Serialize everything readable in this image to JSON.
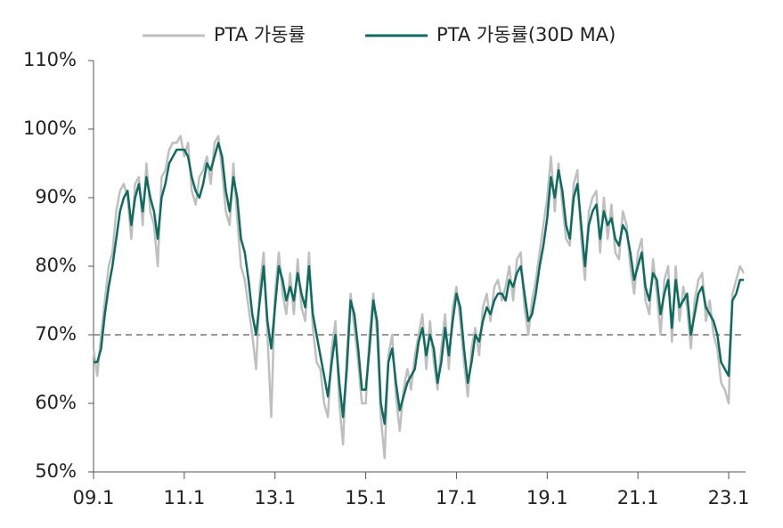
{
  "chart_data": {
    "type": "line",
    "categories": [
      "09.1",
      null,
      null,
      null,
      null,
      null,
      null,
      null,
      null,
      null,
      null,
      null,
      null,
      null,
      null,
      null,
      null,
      null,
      null,
      null,
      null,
      null,
      null,
      null,
      "11.1",
      null,
      null,
      null,
      null,
      null,
      null,
      null,
      null,
      null,
      null,
      null,
      null,
      null,
      null,
      null,
      null,
      null,
      null,
      null,
      null,
      null,
      null,
      null,
      "13.1",
      null,
      null,
      null,
      null,
      null,
      null,
      null,
      null,
      null,
      null,
      null,
      null,
      null,
      null,
      null,
      null,
      null,
      null,
      null,
      null,
      null,
      null,
      null,
      "15.1",
      null,
      null,
      null,
      null,
      null,
      null,
      null,
      null,
      null,
      null,
      null,
      null,
      null,
      null,
      null,
      null,
      null,
      null,
      null,
      null,
      null,
      null,
      null,
      "17.1",
      null,
      null,
      null,
      null,
      null,
      null,
      null,
      null,
      null,
      null,
      null,
      null,
      null,
      null,
      null,
      null,
      null,
      null,
      null,
      null,
      null,
      null,
      null,
      "19.1",
      null,
      null,
      null,
      null,
      null,
      null,
      null,
      null,
      null,
      null,
      null,
      null,
      null,
      null,
      null,
      null,
      null,
      null,
      null,
      null,
      null,
      null,
      null,
      "21.1",
      null,
      null,
      null,
      null,
      null,
      null,
      null,
      null,
      null,
      null,
      null,
      null,
      null,
      null,
      null,
      null,
      null,
      null,
      null,
      null,
      null,
      null,
      null,
      "23.1",
      null,
      null,
      null,
      null
    ],
    "series": [
      {
        "name": "PTA 가동률",
        "color": "#bfbfbf",
        "values": [
          68,
          64,
          70,
          75,
          80,
          82,
          88,
          91,
          92,
          90,
          84,
          92,
          93,
          86,
          95,
          88,
          86,
          80,
          93,
          94,
          97,
          98,
          98,
          99,
          96,
          98,
          91,
          89,
          93,
          94,
          96,
          92,
          98,
          99,
          94,
          88,
          86,
          95,
          87,
          80,
          78,
          74,
          70,
          65,
          77,
          82,
          70,
          58,
          76,
          82,
          76,
          73,
          79,
          73,
          81,
          74,
          72,
          82,
          71,
          66,
          65,
          60,
          58,
          68,
          72,
          60,
          54,
          67,
          76,
          71,
          66,
          60,
          60,
          70,
          76,
          70,
          58,
          52,
          67,
          70,
          61,
          56,
          62,
          65,
          62,
          67,
          70,
          73,
          65,
          72,
          66,
          62,
          68,
          73,
          65,
          74,
          77,
          72,
          66,
          61,
          68,
          71,
          67,
          74,
          76,
          72,
          77,
          78,
          75,
          77,
          80,
          75,
          81,
          82,
          74,
          70,
          75,
          78,
          82,
          86,
          90,
          96,
          88,
          95,
          89,
          84,
          83,
          92,
          94,
          84,
          78,
          88,
          90,
          91,
          82,
          90,
          84,
          89,
          82,
          81,
          88,
          86,
          80,
          76,
          82,
          84,
          75,
          73,
          81,
          76,
          70,
          78,
          80,
          69,
          80,
          72,
          77,
          74,
          68,
          75,
          78,
          79,
          72,
          75,
          70,
          68,
          63,
          62,
          60,
          76,
          78,
          80,
          79
        ]
      },
      {
        "name": "PTA 가동률(30D MA)",
        "color": "#0e6b5e",
        "values": [
          66,
          66,
          68,
          73,
          77,
          80,
          84,
          88,
          90,
          91,
          86,
          90,
          92,
          88,
          93,
          90,
          88,
          84,
          90,
          92,
          95,
          96,
          97,
          97,
          97,
          96,
          93,
          91,
          90,
          92,
          95,
          94,
          96,
          98,
          96,
          91,
          88,
          93,
          90,
          84,
          82,
          78,
          73,
          70,
          75,
          80,
          72,
          68,
          74,
          80,
          78,
          75,
          77,
          75,
          79,
          76,
          74,
          80,
          73,
          70,
          67,
          64,
          61,
          66,
          70,
          63,
          58,
          65,
          75,
          73,
          68,
          62,
          62,
          68,
          75,
          72,
          60,
          57,
          66,
          68,
          63,
          59,
          61,
          63,
          64,
          65,
          69,
          71,
          67,
          70,
          68,
          63,
          66,
          71,
          67,
          72,
          76,
          74,
          68,
          63,
          66,
          70,
          69,
          72,
          74,
          73,
          75,
          76,
          76,
          75,
          78,
          77,
          79,
          80,
          76,
          72,
          73,
          76,
          80,
          83,
          87,
          93,
          90,
          94,
          91,
          86,
          84,
          90,
          92,
          86,
          80,
          86,
          88,
          89,
          84,
          88,
          86,
          87,
          84,
          83,
          86,
          85,
          82,
          78,
          80,
          82,
          77,
          75,
          79,
          78,
          73,
          76,
          78,
          71,
          78,
          74,
          75,
          76,
          70,
          73,
          76,
          77,
          74,
          73,
          72,
          70,
          66,
          65,
          64,
          75,
          76,
          78,
          78
        ]
      }
    ],
    "ylim": [
      50,
      110
    ],
    "yticks": [
      {
        "value": 50,
        "label": "50%"
      },
      {
        "value": 60,
        "label": "60%"
      },
      {
        "value": 70,
        "label": "70%"
      },
      {
        "value": 80,
        "label": "80%"
      },
      {
        "value": 90,
        "label": "90%"
      },
      {
        "value": 100,
        "label": "100%"
      },
      {
        "value": 110,
        "label": "110%"
      }
    ],
    "reference_line": 70,
    "legend": "top"
  }
}
